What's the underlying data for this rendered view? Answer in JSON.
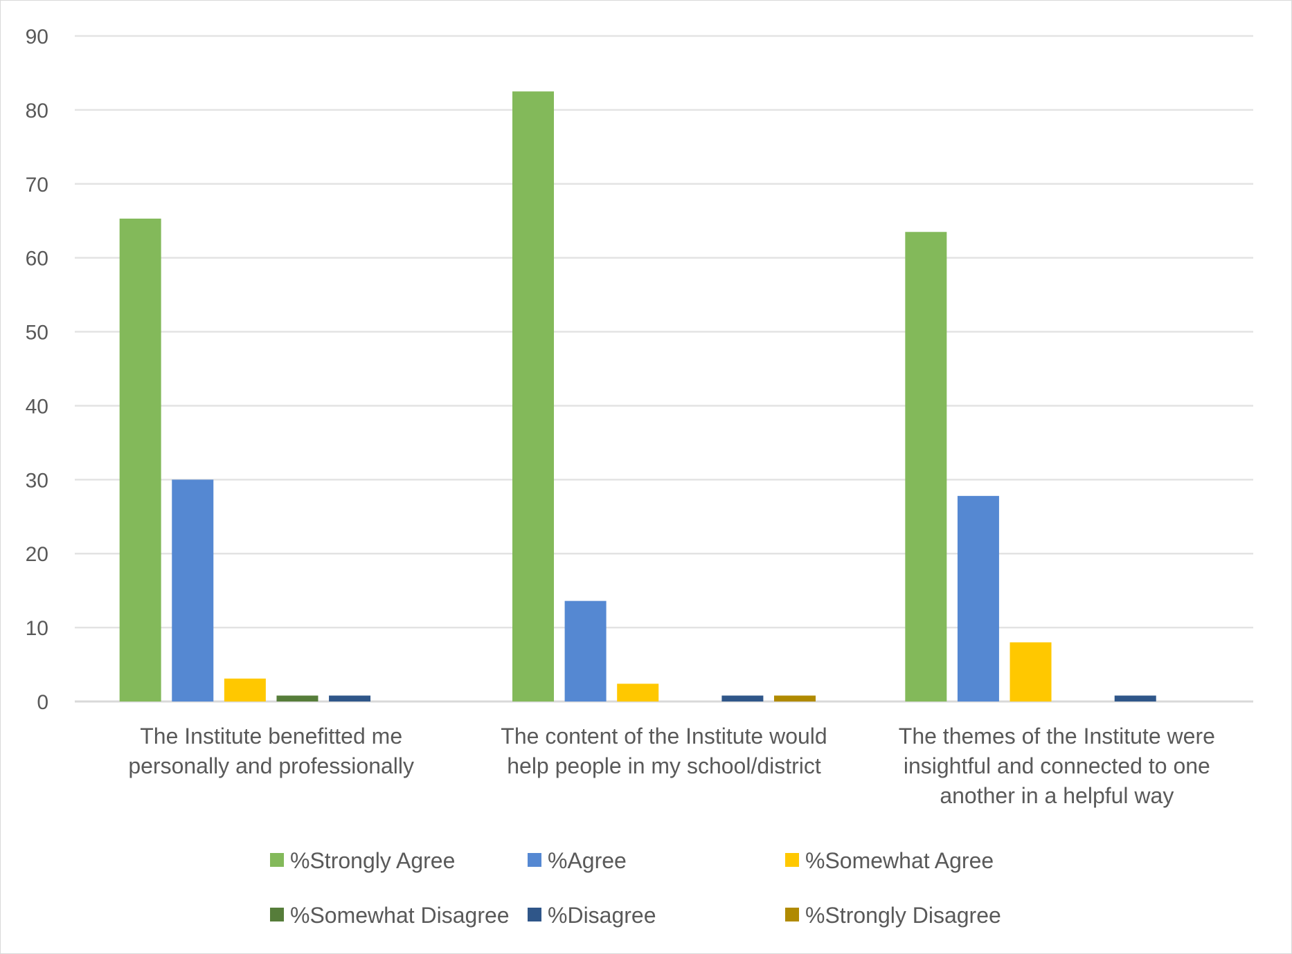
{
  "chart_data": {
    "type": "bar",
    "title": "",
    "xlabel": "",
    "ylabel": "",
    "ylim": [
      0,
      90
    ],
    "yticks": [
      0,
      10,
      20,
      30,
      40,
      50,
      60,
      70,
      80,
      90
    ],
    "grid": true,
    "legend_placement": "bottom",
    "categories": [
      [
        "The Institute benefitted me",
        "personally and professionally"
      ],
      [
        "The content of the Institute would",
        "help people in my school/district"
      ],
      [
        "The themes of the Institute were",
        "insightful and connected to one",
        "another in a helpful way"
      ]
    ],
    "series": [
      {
        "name": "%Strongly Agree",
        "color": "#83b95a",
        "values": [
          65.3,
          82.5,
          63.5
        ]
      },
      {
        "name": "%Agree",
        "color": "#5588d2",
        "values": [
          30.0,
          13.6,
          27.8
        ]
      },
      {
        "name": "%Somewhat Agree",
        "color": "#ffc800",
        "values": [
          3.1,
          2.4,
          8.0
        ]
      },
      {
        "name": "%Somewhat Disagree",
        "color": "#567d3a",
        "values": [
          0.8,
          0,
          0
        ]
      },
      {
        "name": "%Disagree",
        "color": "#2f5689",
        "values": [
          0.8,
          0.8,
          0.8
        ]
      },
      {
        "name": "%Strongly Disagree",
        "color": "#b08a00",
        "values": [
          0,
          0.8,
          0
        ]
      }
    ]
  }
}
